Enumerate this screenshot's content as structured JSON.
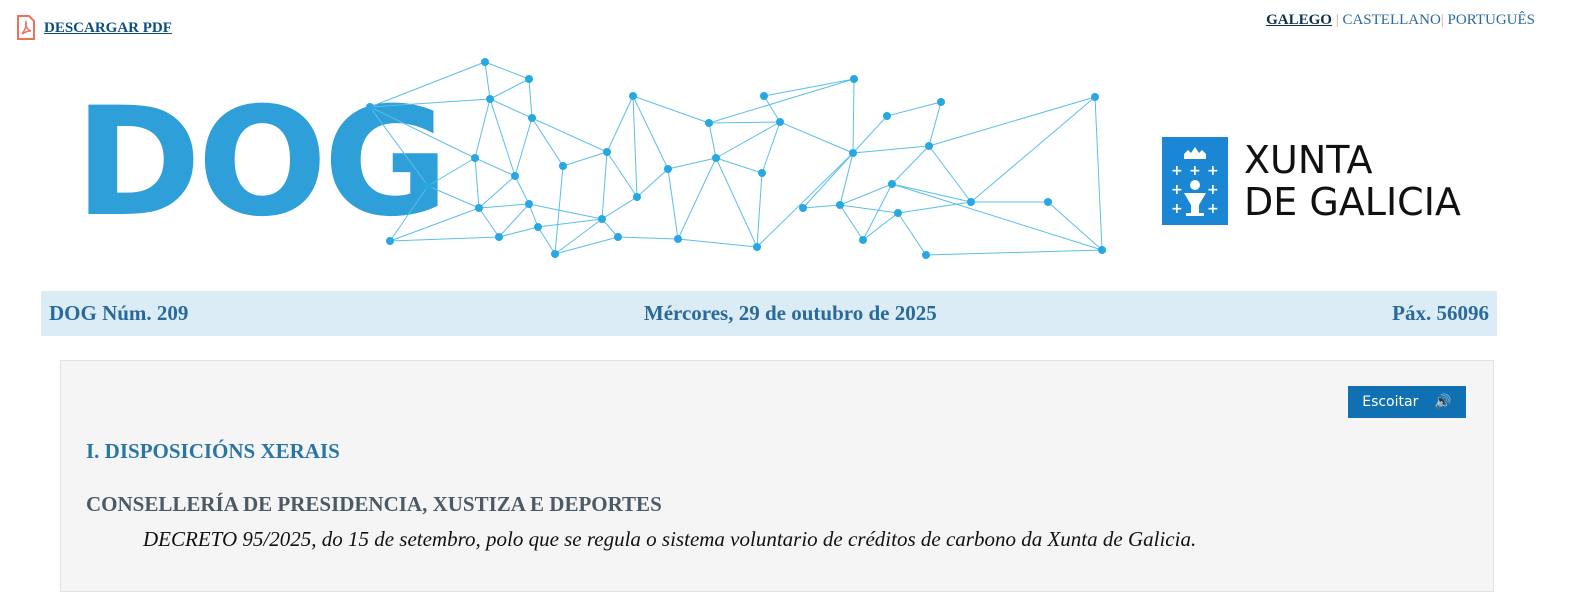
{
  "header": {
    "download_pdf": "DESCARGAR PDF",
    "languages": [
      "GALEGO",
      "CASTELLANO",
      "PORTUGUÊS"
    ],
    "current_language": "GALEGO",
    "logo_text": "DOG",
    "xunta_logo": "XUNTA DE GALICIA",
    "xunta_line1": "XUNTA",
    "xunta_line2": "DE GALICIA"
  },
  "info_bar": {
    "issue": "DOG Núm. 209",
    "date": "Mércores, 29 de outubro de 2025",
    "page": "Páx. 56096"
  },
  "content": {
    "listen_button": "Escoitar",
    "section": "I. DISPOSICIÓNS XERAIS",
    "department": "CONSELLERÍA DE PRESIDENCIA, XUSTIZA E DEPORTES",
    "decree": "DECRETO 95/2025, do 15 de setembro, polo que se regula o sistema voluntario de créditos de carbono da Xunta de Galicia."
  },
  "colors": {
    "brand_blue": "#2e9fd8",
    "bar_bg": "#dcecf7",
    "button": "#0f70b2"
  }
}
